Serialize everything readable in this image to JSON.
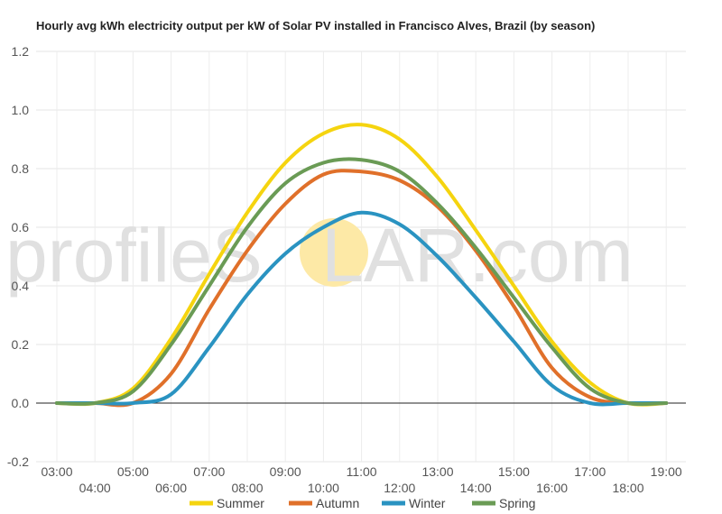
{
  "watermark": {
    "left": "profileS",
    "sun": "O",
    "right": "LAR.com",
    "sun_color": "#fde9a6"
  },
  "chart_data": {
    "type": "line",
    "title": "Hourly avg kWh electricity output per kW of Solar PV installed in Francisco Alves, Brazil (by season)",
    "xlabel": "",
    "ylabel": "",
    "x": [
      "03:00",
      "04:00",
      "05:00",
      "06:00",
      "07:00",
      "08:00",
      "09:00",
      "10:00",
      "11:00",
      "12:00",
      "13:00",
      "14:00",
      "15:00",
      "16:00",
      "17:00",
      "18:00",
      "19:00"
    ],
    "y_ticks": [
      "1.2",
      "1.0",
      "0.8",
      "0.6",
      "0.4",
      "0.2",
      "0.0",
      "-0.2"
    ],
    "ylim": [
      -0.2,
      1.2
    ],
    "grid": true,
    "legend_position": "bottom",
    "series": [
      {
        "name": "Summer",
        "color": "#f5d40f",
        "values": [
          0,
          0,
          0.05,
          0.22,
          0.44,
          0.65,
          0.82,
          0.92,
          0.95,
          0.9,
          0.77,
          0.59,
          0.4,
          0.21,
          0.07,
          0.0,
          0.0
        ]
      },
      {
        "name": "Autumn",
        "color": "#e0702a",
        "values": [
          0,
          0,
          0,
          0.1,
          0.32,
          0.52,
          0.68,
          0.78,
          0.79,
          0.76,
          0.67,
          0.52,
          0.33,
          0.12,
          0.02,
          0,
          0
        ]
      },
      {
        "name": "Winter",
        "color": "#2a93c1",
        "values": [
          0,
          0,
          0,
          0.03,
          0.19,
          0.37,
          0.51,
          0.6,
          0.65,
          0.61,
          0.5,
          0.36,
          0.21,
          0.06,
          0,
          0,
          0
        ]
      },
      {
        "name": "Spring",
        "color": "#6a9b55",
        "values": [
          0,
          0,
          0.04,
          0.2,
          0.4,
          0.6,
          0.75,
          0.82,
          0.83,
          0.79,
          0.68,
          0.53,
          0.36,
          0.19,
          0.05,
          0,
          0
        ]
      }
    ]
  }
}
